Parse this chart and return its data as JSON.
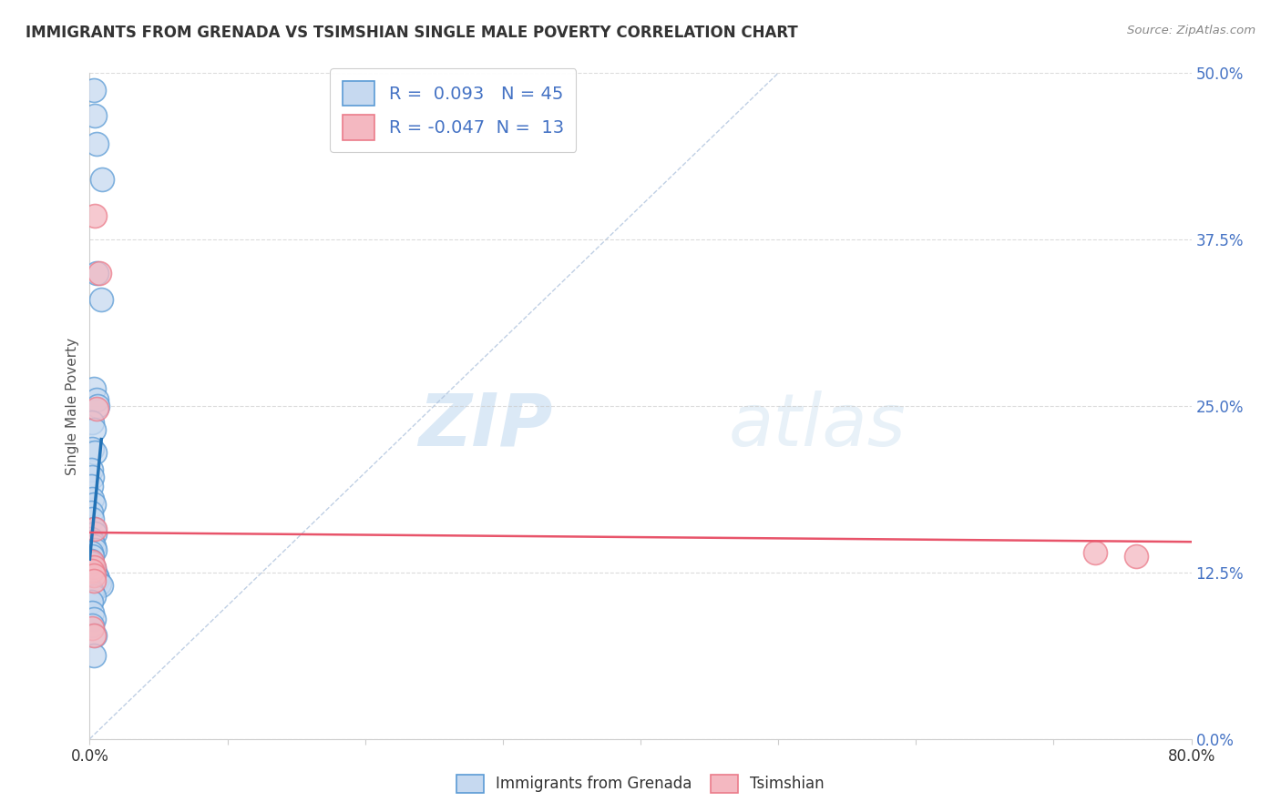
{
  "title": "IMMIGRANTS FROM GRENADA VS TSIMSHIAN SINGLE MALE POVERTY CORRELATION CHART",
  "source": "Source: ZipAtlas.com",
  "ylabel": "Single Male Poverty",
  "ylabel_ticks": [
    "50.0%",
    "37.5%",
    "25.0%",
    "12.5%",
    "0.0%"
  ],
  "ylabel_vals": [
    0.5,
    0.375,
    0.25,
    0.125,
    0.0
  ],
  "xlim": [
    0,
    0.8
  ],
  "ylim": [
    0,
    0.5
  ],
  "legend_label1": "Immigrants from Grenada",
  "legend_label2": "Tsimshian",
  "R1": 0.093,
  "N1": 45,
  "R2": -0.047,
  "N2": 13,
  "blue_fill": "#c6d9f0",
  "blue_edge": "#5b9bd5",
  "pink_fill": "#f4b8c1",
  "pink_edge": "#eb7b8a",
  "blue_line_color": "#2171b5",
  "pink_line_color": "#e8546a",
  "blue_dots": [
    [
      0.003,
      0.487
    ],
    [
      0.004,
      0.468
    ],
    [
      0.005,
      0.447
    ],
    [
      0.009,
      0.42
    ],
    [
      0.005,
      0.35
    ],
    [
      0.008,
      0.33
    ],
    [
      0.003,
      0.263
    ],
    [
      0.005,
      0.255
    ],
    [
      0.006,
      0.25
    ],
    [
      0.002,
      0.238
    ],
    [
      0.003,
      0.232
    ],
    [
      0.002,
      0.218
    ],
    [
      0.004,
      0.215
    ],
    [
      0.001,
      0.202
    ],
    [
      0.002,
      0.197
    ],
    [
      0.001,
      0.19
    ],
    [
      0.002,
      0.18
    ],
    [
      0.003,
      0.176
    ],
    [
      0.001,
      0.17
    ],
    [
      0.002,
      0.165
    ],
    [
      0.003,
      0.158
    ],
    [
      0.004,
      0.154
    ],
    [
      0.001,
      0.15
    ],
    [
      0.002,
      0.148
    ],
    [
      0.003,
      0.145
    ],
    [
      0.004,
      0.142
    ],
    [
      0.001,
      0.14
    ],
    [
      0.002,
      0.137
    ],
    [
      0.001,
      0.134
    ],
    [
      0.002,
      0.132
    ],
    [
      0.003,
      0.128
    ],
    [
      0.004,
      0.125
    ],
    [
      0.005,
      0.122
    ],
    [
      0.006,
      0.12
    ],
    [
      0.007,
      0.117
    ],
    [
      0.008,
      0.115
    ],
    [
      0.001,
      0.112
    ],
    [
      0.002,
      0.11
    ],
    [
      0.003,
      0.107
    ],
    [
      0.001,
      0.103
    ],
    [
      0.002,
      0.095
    ],
    [
      0.003,
      0.09
    ],
    [
      0.002,
      0.085
    ],
    [
      0.004,
      0.078
    ],
    [
      0.003,
      0.063
    ]
  ],
  "pink_dots": [
    [
      0.004,
      0.393
    ],
    [
      0.007,
      0.35
    ],
    [
      0.005,
      0.248
    ],
    [
      0.004,
      0.158
    ],
    [
      0.002,
      0.133
    ],
    [
      0.003,
      0.129
    ],
    [
      0.002,
      0.126
    ],
    [
      0.003,
      0.123
    ],
    [
      0.003,
      0.119
    ],
    [
      0.002,
      0.083
    ],
    [
      0.003,
      0.078
    ],
    [
      0.73,
      0.14
    ],
    [
      0.76,
      0.137
    ]
  ],
  "watermark_zip": "ZIP",
  "watermark_atlas": "atlas",
  "bg_color": "#ffffff",
  "grid_color": "#cccccc",
  "ref_line_color": "#b0c4de"
}
